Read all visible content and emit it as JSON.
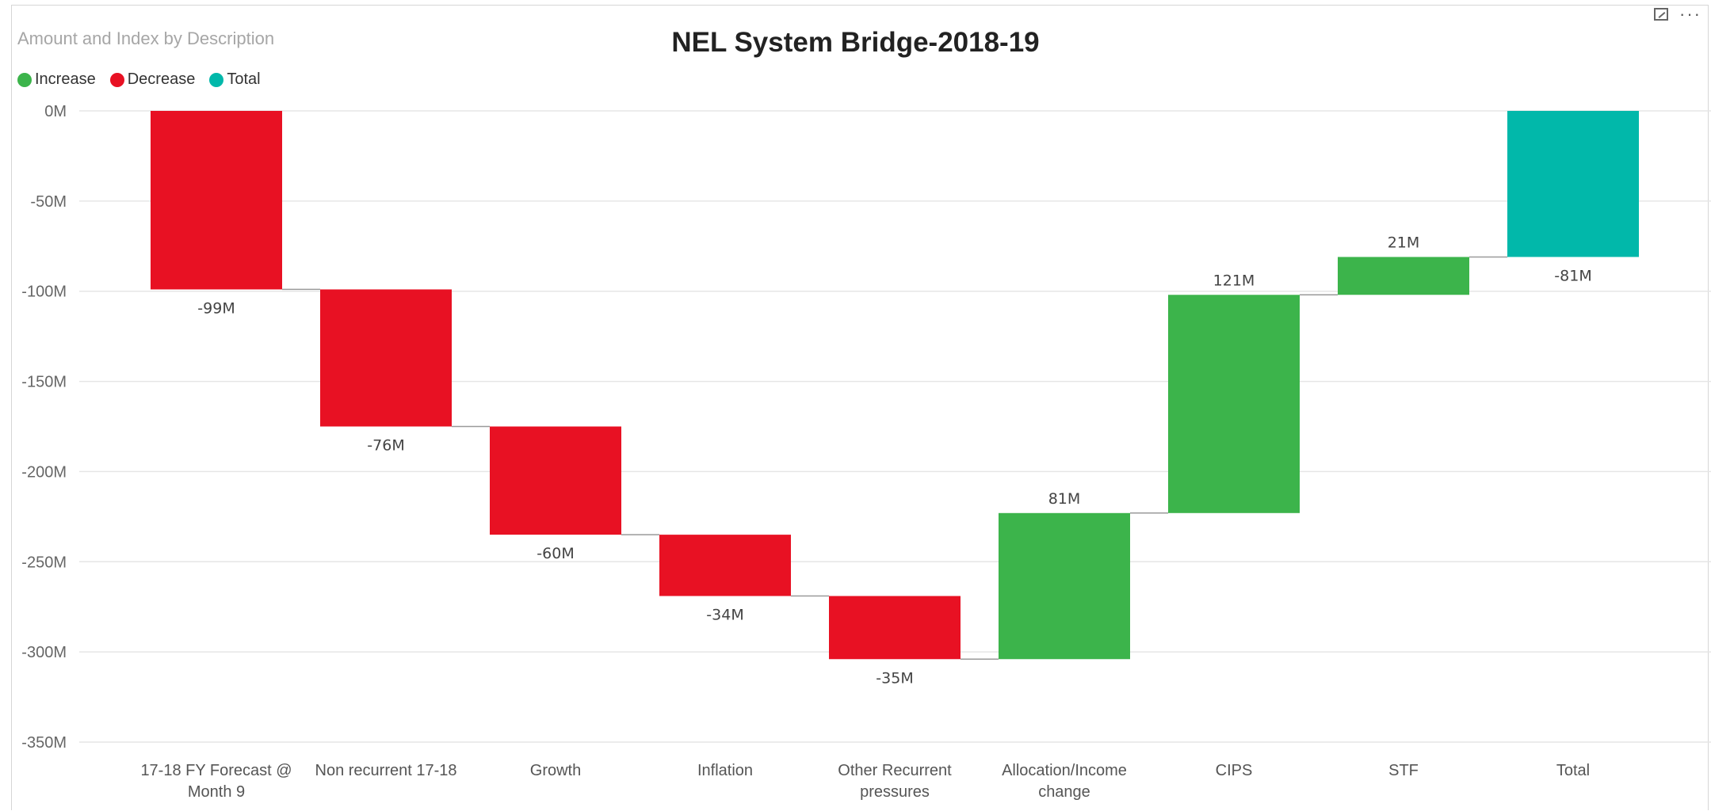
{
  "visual": {
    "subtitle": "Amount and Index by Description",
    "title": "NEL System Bridge-2018-19",
    "toolbar": {
      "focus_icon": "focus-mode-icon",
      "more_icon": "more-options-icon",
      "more_label": "···"
    }
  },
  "legend": [
    {
      "name": "Increase",
      "color": "#3cb44b"
    },
    {
      "name": "Decrease",
      "color": "#e81123"
    },
    {
      "name": "Total",
      "color": "#01b8aa"
    }
  ],
  "chart_data": {
    "type": "waterfall",
    "title": "NEL System Bridge-2018-19",
    "categories": [
      [
        "17-18 FY Forecast @",
        "Month 9"
      ],
      [
        "Non recurrent 17-18"
      ],
      [
        "Growth"
      ],
      [
        "Inflation"
      ],
      [
        "Other Recurrent",
        "pressures"
      ],
      [
        "Allocation/Income",
        "change"
      ],
      [
        "CIPS"
      ],
      [
        "STF"
      ],
      [
        "Total"
      ]
    ],
    "values": [
      -99,
      -76,
      -60,
      -34,
      -35,
      81,
      121,
      21,
      -81
    ],
    "kinds": [
      "decrease",
      "decrease",
      "decrease",
      "decrease",
      "decrease",
      "increase",
      "increase",
      "increase",
      "total"
    ],
    "data_labels": [
      "-99M",
      "-76M",
      "-60M",
      "-34M",
      "-35M",
      "81M",
      "121M",
      "21M",
      "-81M"
    ],
    "y_ticks": [
      "0M",
      "-50M",
      "-100M",
      "-150M",
      "-200M",
      "-250M",
      "-300M",
      "-350M"
    ],
    "y_tick_values": [
      0,
      -50,
      -100,
      -150,
      -200,
      -250,
      -300,
      -350
    ],
    "ylim": [
      -350,
      0
    ],
    "grid": true,
    "legend_position": "top-left",
    "colors": {
      "increase": "#3cb44b",
      "decrease": "#e81123",
      "total": "#01b8aa"
    }
  }
}
